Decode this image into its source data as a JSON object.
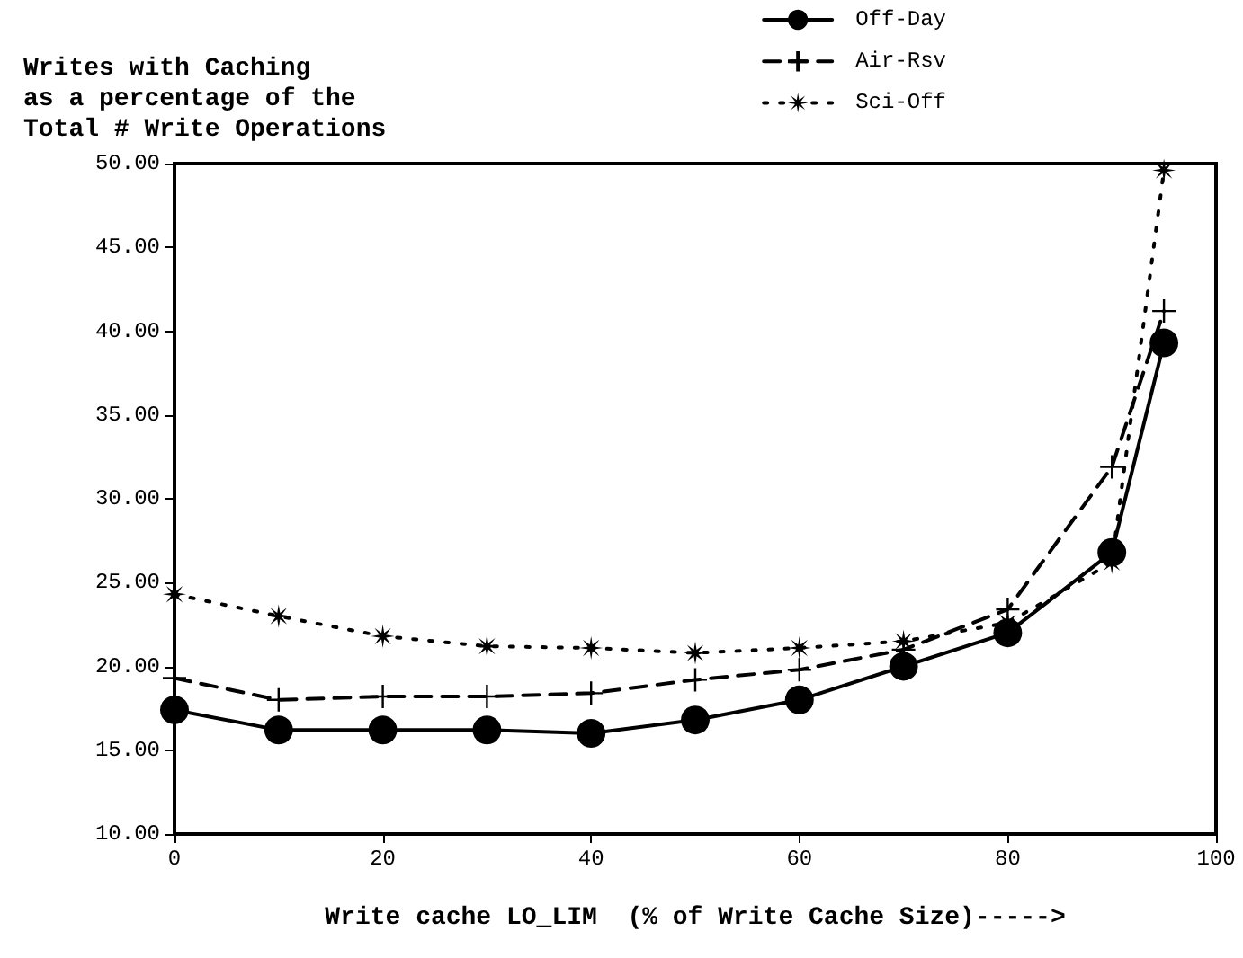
{
  "chart_data": {
    "type": "line",
    "title": "Writes with Caching\nas a percentage of the\nTotal # Write Operations",
    "xlabel": "Write cache LO_LIM  (% of Write Cache Size)----->",
    "x": [
      0,
      10,
      20,
      30,
      40,
      50,
      60,
      70,
      80,
      90,
      95
    ],
    "series": [
      {
        "name": "Off-Day",
        "color": "#000000",
        "marker": "circle",
        "line_style": "solid",
        "values": [
          17.4,
          16.2,
          16.2,
          16.2,
          16.0,
          16.8,
          18.0,
          20.0,
          22.0,
          26.8,
          39.3
        ]
      },
      {
        "name": "Air-Rsv",
        "color": "#000000",
        "marker": "cross",
        "line_style": "dashed",
        "values": [
          19.3,
          18.0,
          18.2,
          18.2,
          18.4,
          19.2,
          19.8,
          21.0,
          23.4,
          31.9,
          41.2
        ]
      },
      {
        "name": "Sci-Off",
        "color": "#000000",
        "marker": "star",
        "line_style": "dotted",
        "values": [
          24.3,
          23.0,
          21.8,
          21.2,
          21.1,
          20.8,
          21.1,
          21.5,
          22.6,
          26.2,
          49.6
        ]
      }
    ],
    "xlim": [
      0,
      100
    ],
    "xticks": [
      0,
      20,
      40,
      60,
      80,
      100
    ],
    "ylim": [
      10,
      50
    ],
    "yticks": [
      {
        "value": 10,
        "label": "10.00"
      },
      {
        "value": 15,
        "label": "15.00"
      },
      {
        "value": 20,
        "label": "20.00"
      },
      {
        "value": 25,
        "label": "25.00"
      },
      {
        "value": 30,
        "label": "30.00"
      },
      {
        "value": 35,
        "label": "35.00"
      },
      {
        "value": 40,
        "label": "40.00"
      },
      {
        "value": 45,
        "label": "45.00"
      },
      {
        "value": 50,
        "label": "50.00"
      }
    ],
    "grid": false,
    "legend": "top right"
  }
}
